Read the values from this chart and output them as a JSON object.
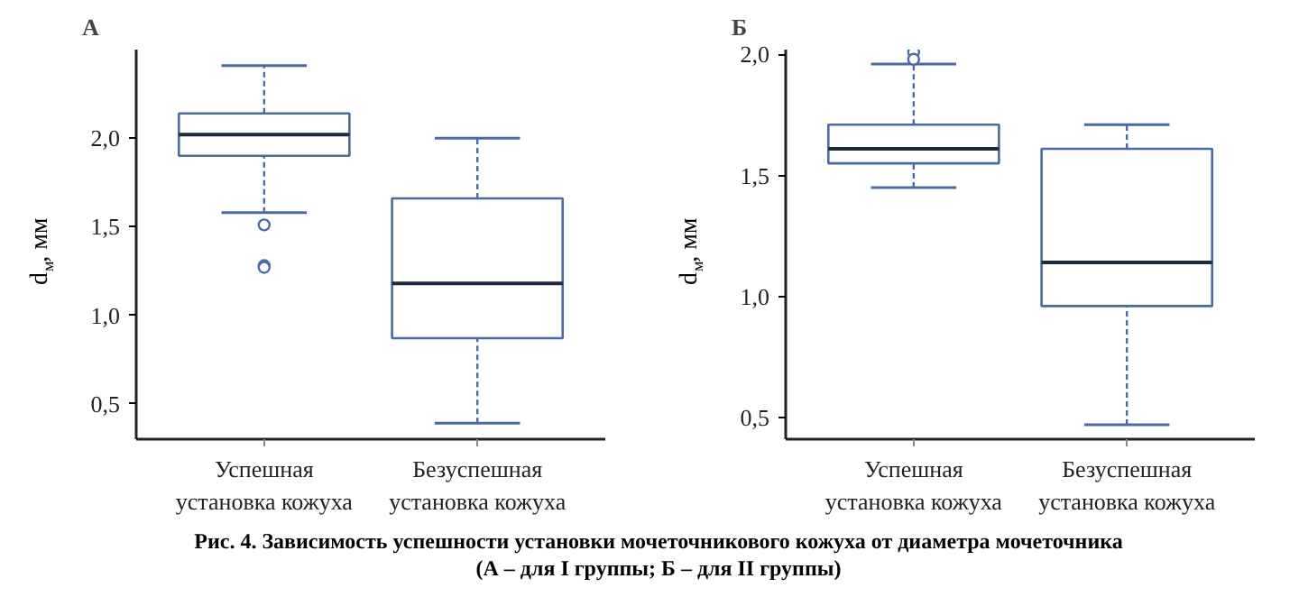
{
  "chart_data": [
    {
      "type": "box",
      "title": "А",
      "ylabel": "d$_{м}$, мм",
      "categories": [
        "Успешная\nустановка кожуха",
        "Безуспешная\nустановка кожуха"
      ],
      "color": "#4a6aa3",
      "ylim": [
        0.3,
        2.5
      ],
      "yticks": [
        {
          "value": 0.5,
          "label": "0,5"
        },
        {
          "value": 1.0,
          "label": "1,0"
        },
        {
          "value": 1.5,
          "label": "1,5"
        },
        {
          "value": 2.0,
          "label": "2,0"
        }
      ],
      "grid": false,
      "boxes": [
        {
          "low": 1.58,
          "q1": 1.9,
          "median": 2.02,
          "q3": 2.14,
          "high": 2.41,
          "outliers": [
            1.51,
            1.28,
            1.27
          ]
        },
        {
          "low": 0.39,
          "q1": 0.87,
          "median": 1.18,
          "q3": 1.66,
          "high": 2.0
        }
      ],
      "annotations": [
        "Рис. 4. Зависимость успешности установки мочеточникового кожуха от диаметра мочеточника",
        "(А – для I группы; Б – для II группы)"
      ]
    },
    {
      "type": "box",
      "title": "Б",
      "ylabel": "d$_{м}$, мм",
      "categories": [
        "Успешная\nустановка кожуха",
        "Безуспешная\nустановка кожуха"
      ],
      "color": "#4a6aa3",
      "ylim": [
        0.41,
        2.02
      ],
      "yticks": [
        {
          "value": 0.5,
          "label": "0,5"
        },
        {
          "value": 1.0,
          "label": "1,0"
        },
        {
          "value": 1.5,
          "label": "1,5"
        },
        {
          "value": 2.0,
          "label": "2,0"
        }
      ],
      "grid": false,
      "boxes": [
        {
          "low": 1.45,
          "q1": 1.55,
          "median": 1.61,
          "q3": 1.71,
          "high": 1.96,
          "outliers": [
            2.01,
            1.98
          ]
        },
        {
          "low": 0.47,
          "q1": 0.96,
          "median": 1.14,
          "q3": 1.61,
          "high": 1.71
        }
      ]
    }
  ]
}
